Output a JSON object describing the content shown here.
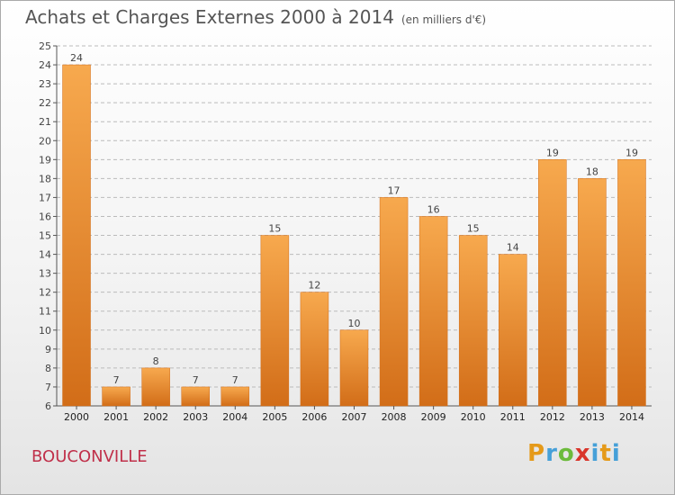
{
  "title": "Achats et Charges Externes 2000 à 2014",
  "subtitle": "(en milliers d'€)",
  "town": "BOUCONVILLE",
  "logo": {
    "letters": [
      "P",
      "r",
      "o",
      "x",
      "i",
      "t",
      "i"
    ]
  },
  "colors": {
    "bar": "#e8832e",
    "bar_light": "#f7a94e",
    "bar_dark": "#d26d18",
    "axis": "#555555",
    "grid": "#bbbbbb"
  },
  "chart_data": {
    "type": "bar",
    "categories": [
      "2000",
      "2001",
      "2002",
      "2003",
      "2004",
      "2005",
      "2006",
      "2007",
      "2008",
      "2009",
      "2010",
      "2011",
      "2012",
      "2013",
      "2014"
    ],
    "values": [
      24,
      7,
      8,
      7,
      7,
      15,
      12,
      10,
      17,
      16,
      15,
      14,
      19,
      18,
      19
    ],
    "title": "Achats et Charges Externes 2000 à 2014",
    "subtitle": "(en milliers d'€)",
    "ylim": [
      6,
      25
    ],
    "yticks": [
      6,
      7,
      8,
      9,
      10,
      11,
      12,
      13,
      14,
      15,
      16,
      17,
      18,
      19,
      20,
      21,
      22,
      23,
      24,
      25
    ],
    "data_labels": [
      "24",
      "7",
      "8",
      "7",
      "7",
      "15",
      "12",
      "10",
      "17",
      "16",
      "15",
      "14",
      "19",
      "18",
      "19"
    ]
  }
}
